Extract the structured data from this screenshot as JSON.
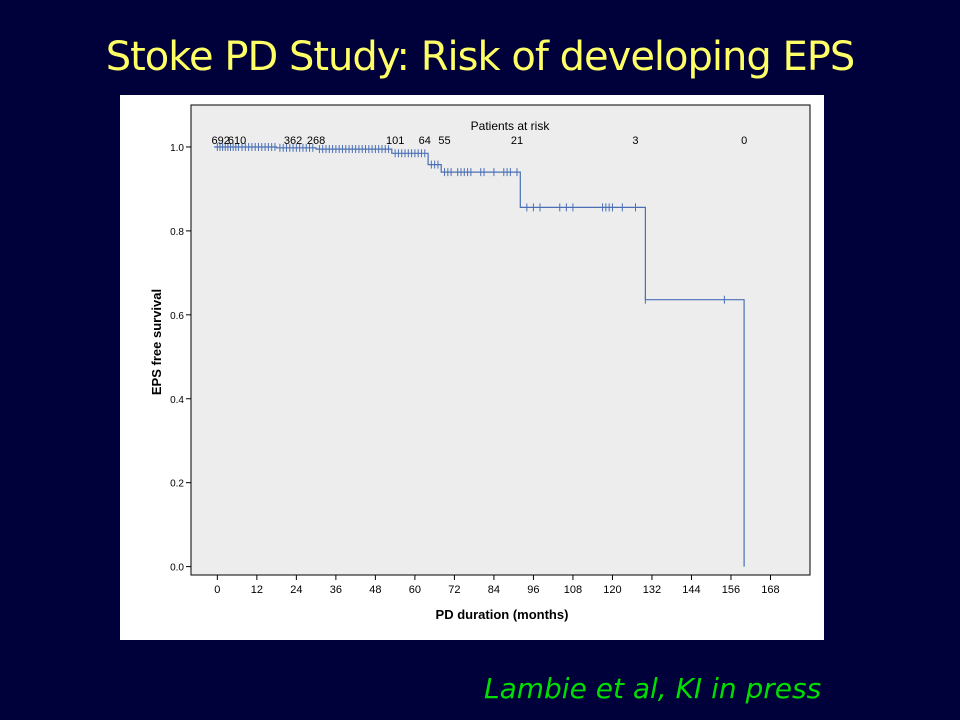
{
  "slide": {
    "title": "Stoke PD Study: Risk of developing EPS",
    "citation": "Lambie et al, KI in press"
  },
  "colors": {
    "background": "#00003a",
    "title": "#ffff66",
    "citation": "#00dd00",
    "plot_area": "#ededed",
    "curve": "#4a6fb5"
  },
  "chart_data": {
    "type": "line",
    "title": "",
    "xlabel": "PD duration (months)",
    "ylabel": "EPS free survival",
    "xlim": [
      -8,
      180
    ],
    "ylim": [
      -0.02,
      1.1
    ],
    "x_ticks": [
      0,
      12,
      24,
      36,
      48,
      60,
      72,
      84,
      96,
      108,
      120,
      132,
      144,
      156,
      168
    ],
    "y_ticks": [
      0.0,
      0.2,
      0.4,
      0.6,
      0.8,
      1.0
    ],
    "y_tick_labels": [
      "0.0",
      "0.2",
      "0.4",
      "0.6",
      "0.8",
      "1.0"
    ],
    "grid": false,
    "at_risk": {
      "label": "Patients at risk",
      "entries": [
        {
          "x": 1,
          "label": "692"
        },
        {
          "x": 6,
          "label": "610"
        },
        {
          "x": 23,
          "label": "362"
        },
        {
          "x": 30,
          "label": "268"
        },
        {
          "x": 54,
          "label": "101"
        },
        {
          "x": 63,
          "label": "64"
        },
        {
          "x": 69,
          "label": "55"
        },
        {
          "x": 91,
          "label": "21"
        },
        {
          "x": 127,
          "label": "3"
        },
        {
          "x": 160,
          "label": "0"
        }
      ]
    },
    "series": [
      {
        "steps": [
          [
            -1,
            1.0
          ],
          [
            18,
            1.0
          ],
          [
            18,
            0.998
          ],
          [
            30,
            0.998
          ],
          [
            30,
            0.995
          ],
          [
            53,
            0.995
          ],
          [
            53,
            0.985
          ],
          [
            64,
            0.985
          ],
          [
            64,
            0.958
          ],
          [
            68,
            0.958
          ],
          [
            68,
            0.94
          ],
          [
            92,
            0.94
          ],
          [
            92,
            0.856
          ],
          [
            130,
            0.856
          ],
          [
            130,
            0.636
          ],
          [
            160,
            0.636
          ],
          [
            160,
            0.0
          ]
        ],
        "censored": [
          [
            0,
            1.0
          ],
          [
            0.8,
            1.0
          ],
          [
            1.6,
            1.0
          ],
          [
            2.4,
            1.0
          ],
          [
            3.2,
            1.0
          ],
          [
            4,
            1.0
          ],
          [
            4.8,
            1.0
          ],
          [
            5.6,
            1.0
          ],
          [
            6.4,
            1.0
          ],
          [
            7.5,
            1.0
          ],
          [
            8.5,
            1.0
          ],
          [
            9.5,
            1.0
          ],
          [
            10.5,
            1.0
          ],
          [
            11.5,
            1.0
          ],
          [
            12.5,
            1.0
          ],
          [
            13.5,
            1.0
          ],
          [
            14.5,
            1.0
          ],
          [
            15.5,
            1.0
          ],
          [
            16.5,
            1.0
          ],
          [
            17.5,
            1.0
          ],
          [
            19,
            0.998
          ],
          [
            20,
            0.998
          ],
          [
            21,
            0.998
          ],
          [
            22,
            0.998
          ],
          [
            23,
            0.998
          ],
          [
            24,
            0.998
          ],
          [
            25,
            0.998
          ],
          [
            26,
            0.998
          ],
          [
            27,
            0.998
          ],
          [
            28,
            0.998
          ],
          [
            29,
            0.998
          ],
          [
            31,
            0.995
          ],
          [
            32,
            0.995
          ],
          [
            33,
            0.995
          ],
          [
            34,
            0.995
          ],
          [
            35,
            0.995
          ],
          [
            36,
            0.995
          ],
          [
            37,
            0.995
          ],
          [
            38,
            0.995
          ],
          [
            39,
            0.995
          ],
          [
            40,
            0.995
          ],
          [
            41,
            0.995
          ],
          [
            42,
            0.995
          ],
          [
            43,
            0.995
          ],
          [
            44,
            0.995
          ],
          [
            45,
            0.995
          ],
          [
            46,
            0.995
          ],
          [
            47,
            0.995
          ],
          [
            48,
            0.995
          ],
          [
            49,
            0.995
          ],
          [
            50,
            0.995
          ],
          [
            51,
            0.995
          ],
          [
            52,
            0.995
          ],
          [
            54,
            0.985
          ],
          [
            55,
            0.985
          ],
          [
            56,
            0.985
          ],
          [
            57,
            0.985
          ],
          [
            58,
            0.985
          ],
          [
            59,
            0.985
          ],
          [
            60,
            0.985
          ],
          [
            61,
            0.985
          ],
          [
            62,
            0.985
          ],
          [
            63,
            0.985
          ],
          [
            65,
            0.958
          ],
          [
            66,
            0.958
          ],
          [
            67,
            0.958
          ],
          [
            69,
            0.94
          ],
          [
            70,
            0.94
          ],
          [
            71,
            0.94
          ],
          [
            73,
            0.94
          ],
          [
            74,
            0.94
          ],
          [
            75,
            0.94
          ],
          [
            76,
            0.94
          ],
          [
            77,
            0.94
          ],
          [
            80,
            0.94
          ],
          [
            81,
            0.94
          ],
          [
            84,
            0.94
          ],
          [
            87,
            0.94
          ],
          [
            88,
            0.94
          ],
          [
            89,
            0.94
          ],
          [
            91,
            0.94
          ],
          [
            94,
            0.856
          ],
          [
            96,
            0.856
          ],
          [
            98,
            0.856
          ],
          [
            104,
            0.856
          ],
          [
            106,
            0.856
          ],
          [
            108,
            0.856
          ],
          [
            117,
            0.856
          ],
          [
            118,
            0.856
          ],
          [
            119,
            0.856
          ],
          [
            120,
            0.856
          ],
          [
            123,
            0.856
          ],
          [
            127,
            0.856
          ],
          [
            130,
            0.636
          ],
          [
            154,
            0.636
          ]
        ]
      }
    ]
  }
}
